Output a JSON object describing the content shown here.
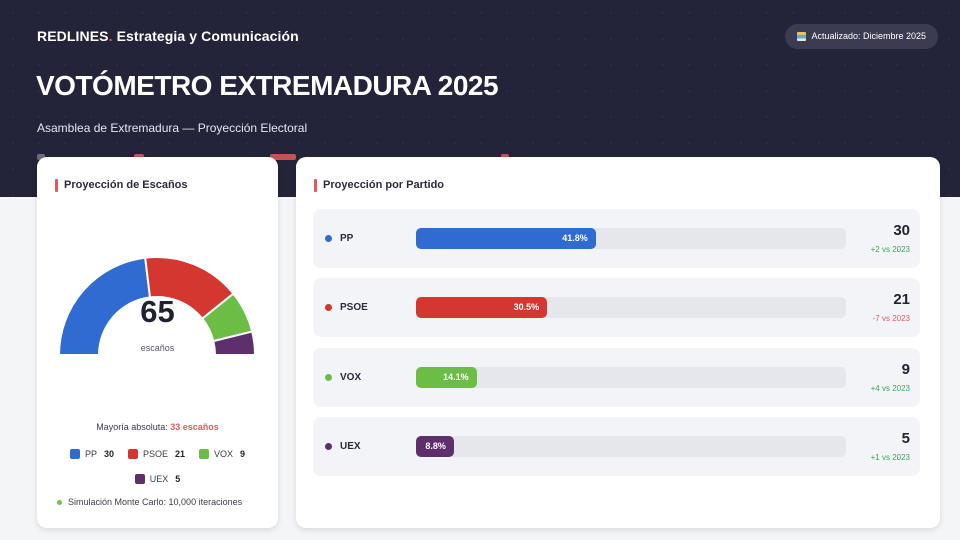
{
  "header": {
    "brand_name": "REDLINES",
    "brand_dot": ".",
    "brand_tagline": "Estrategia y Comunicación",
    "updated_label": "Actualizado: Diciembre 2025",
    "title": "VOTÓMETRO EXTREMADURA 2025",
    "subtitle": "Asamblea de Extremadura — Proyección Electoral"
  },
  "left_card": {
    "title": "Proyección de Escaños",
    "total_seats": "65",
    "total_label": "escaños",
    "majority_label": "Mayoría absoluta:",
    "majority_value": "33 escaños",
    "simulation_note": "Simulación Monte Carlo: 10,000 iteraciones"
  },
  "right_card": {
    "title": "Proyección por Partido"
  },
  "parties": [
    {
      "name": "PP",
      "color": "#2f6bd0",
      "pct": 41.8,
      "pct_label": "41.8%",
      "seats": "30",
      "seats_value": 30,
      "delta": "+2 vs 2023",
      "trend": "up"
    },
    {
      "name": "PSOE",
      "color": "#d33730",
      "pct": 30.5,
      "pct_label": "30.5%",
      "seats": "21",
      "seats_value": 21,
      "delta": "-7 vs 2023",
      "trend": "down"
    },
    {
      "name": "VOX",
      "color": "#6cbd45",
      "pct": 14.1,
      "pct_label": "14.1%",
      "seats": "9",
      "seats_value": 9,
      "delta": "+4 vs 2023",
      "trend": "up"
    },
    {
      "name": "UEX",
      "color": "#5e2f6c",
      "pct": 8.8,
      "pct_label": "8.8%",
      "seats": "5",
      "seats_value": 5,
      "delta": "+1 vs 2023",
      "trend": "up"
    }
  ],
  "icons": {
    "updated_badge": "bar-chart-icon",
    "simulation": "status-dot-icon"
  }
}
